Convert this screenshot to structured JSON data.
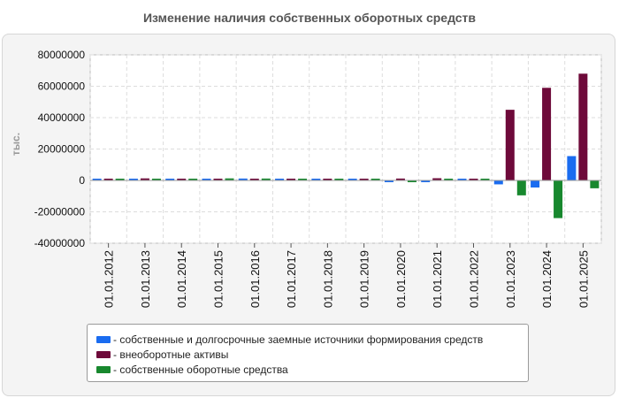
{
  "chart_data": {
    "type": "bar",
    "title": "Изменение наличия собственных оборотных средств",
    "ylabel": "тыс.",
    "xlabel": "",
    "ylim": [
      -40000000,
      80000000
    ],
    "yticks": [
      80000000,
      60000000,
      40000000,
      20000000,
      0,
      -20000000,
      -40000000
    ],
    "ytick_labels": [
      "80000000",
      "60000000",
      "40000000",
      "20000000",
      "0",
      "-20000000",
      "-40000000"
    ],
    "grid": true,
    "legend_position": "bottom",
    "categories": [
      "01.01.2012",
      "01.01.2013",
      "01.01.2014",
      "01.01.2015",
      "01.01.2016",
      "01.01.2017",
      "01.01.2018",
      "01.01.2019",
      "01.01.2020",
      "01.01.2021",
      "01.01.2022",
      "01.01.2023",
      "01.01.2024",
      "01.01.2025"
    ],
    "series": [
      {
        "name": "- собственные и долгосрочные заемные источники формирования средств",
        "color": "#1a6cf0",
        "values": [
          800000,
          600000,
          800000,
          900000,
          1200000,
          900000,
          800000,
          900000,
          -300000,
          -300000,
          700000,
          -2500000,
          -4500000,
          15500000
        ]
      },
      {
        "name": "- внеоборотные активы",
        "color": "#6e0a3a",
        "values": [
          700000,
          1300000,
          900000,
          800000,
          700000,
          800000,
          1000000,
          700000,
          1200000,
          1400000,
          800000,
          45000000,
          59000000,
          68000000
        ]
      },
      {
        "name": "- собственные оборотные средства",
        "color": "#18882e",
        "values": [
          900000,
          700000,
          700000,
          1300000,
          1200000,
          800000,
          700000,
          800000,
          -400000,
          700000,
          700000,
          -9500000,
          -24000000,
          -5000000
        ]
      }
    ]
  }
}
